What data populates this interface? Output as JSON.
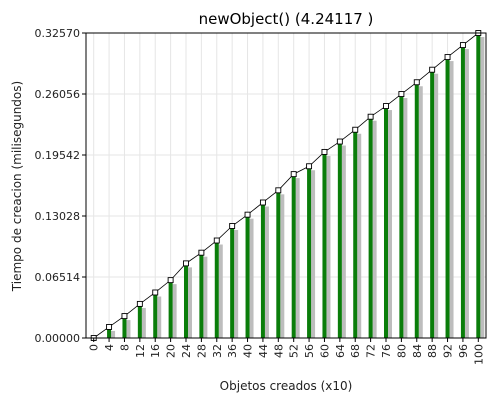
{
  "chart_data": {
    "type": "bar",
    "title": "newObject() (4.24117 )",
    "xlabel": "Objetos creados (x10)",
    "ylabel": "Tiempo de creacion (milisegundos)",
    "ylim": [
      0,
      0.3257
    ],
    "y_ticks": [
      "0.00000",
      "0.06514",
      "0.13028",
      "0.19542",
      "0.26056",
      "0.32570"
    ],
    "categories": [
      "0",
      "4",
      "8",
      "12",
      "16",
      "20",
      "24",
      "28",
      "32",
      "36",
      "40",
      "44",
      "48",
      "52",
      "56",
      "60",
      "64",
      "68",
      "72",
      "76",
      "80",
      "84",
      "88",
      "92",
      "96",
      "100"
    ],
    "values": [
      0.0,
      0.0118,
      0.0234,
      0.0364,
      0.0486,
      0.0618,
      0.0797,
      0.0911,
      0.1041,
      0.1196,
      0.1317,
      0.1447,
      0.1577,
      0.175,
      0.1834,
      0.1987,
      0.2098,
      0.2224,
      0.2363,
      0.2477,
      0.2605,
      0.2731,
      0.2865,
      0.3,
      0.3128,
      0.3257
    ],
    "grid": true,
    "colors": {
      "bar": "#0a7d0a",
      "bar_shadow": "#bdbdbd",
      "line": "#000000",
      "grid": "#e6e6e6"
    }
  }
}
